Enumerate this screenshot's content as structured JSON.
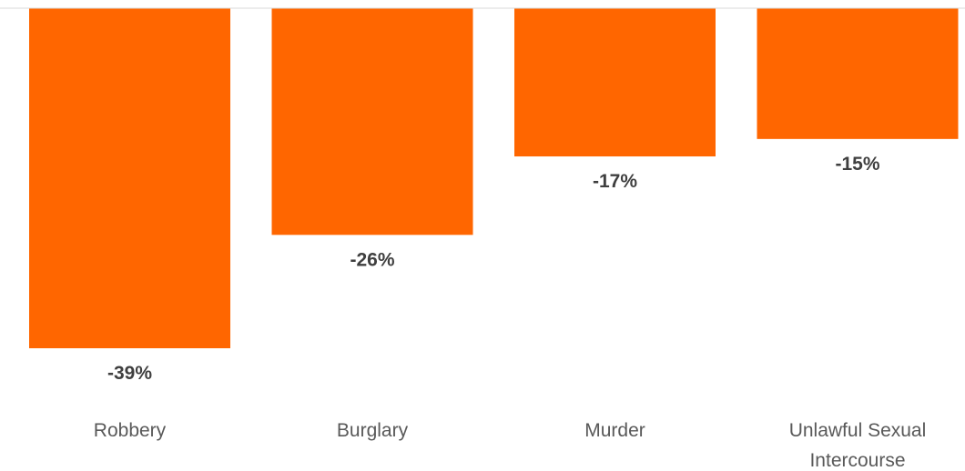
{
  "chart_data": {
    "type": "bar",
    "orientation": "vertical",
    "categories": [
      "Robbery",
      "Burglary",
      "Murder",
      "Unlawful Sexual Intercourse"
    ],
    "category_lines": [
      [
        "Robbery"
      ],
      [
        "Burglary"
      ],
      [
        "Murder"
      ],
      [
        "Unlawful Sexual",
        "Intercourse"
      ]
    ],
    "values": [
      -39,
      -26,
      -17,
      -15
    ],
    "data_labels": [
      "-39%",
      "-26%",
      "-17%",
      "-15%"
    ],
    "unit": "%",
    "ylim": [
      -39,
      0
    ],
    "grid": false,
    "legend": "none",
    "colors": {
      "bar": "#ff6600",
      "axis": "#d9d9d9",
      "data_label": "#3f3f3f",
      "category_label": "#595959"
    }
  }
}
